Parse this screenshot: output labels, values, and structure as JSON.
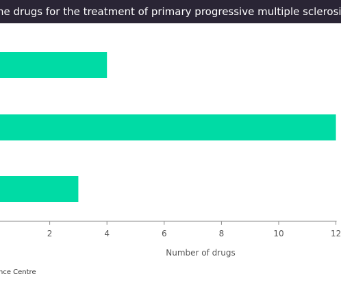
{
  "header": {
    "title": "ne drugs for the treatment of primary progressive multiple sclerosis"
  },
  "footer": {
    "source": "nce Centre"
  },
  "chart_data": {
    "type": "bar",
    "orientation": "horizontal",
    "title": "ne drugs for the treatment of primary progressive multiple sclerosis",
    "xlabel": "Number  of drugs",
    "ylabel": "",
    "xlim": [
      0,
      12
    ],
    "x_ticks": [
      2,
      4,
      6,
      8,
      10,
      12
    ],
    "values": [
      4,
      12,
      3
    ],
    "bar_color": "#00dba5",
    "grid": false
  }
}
